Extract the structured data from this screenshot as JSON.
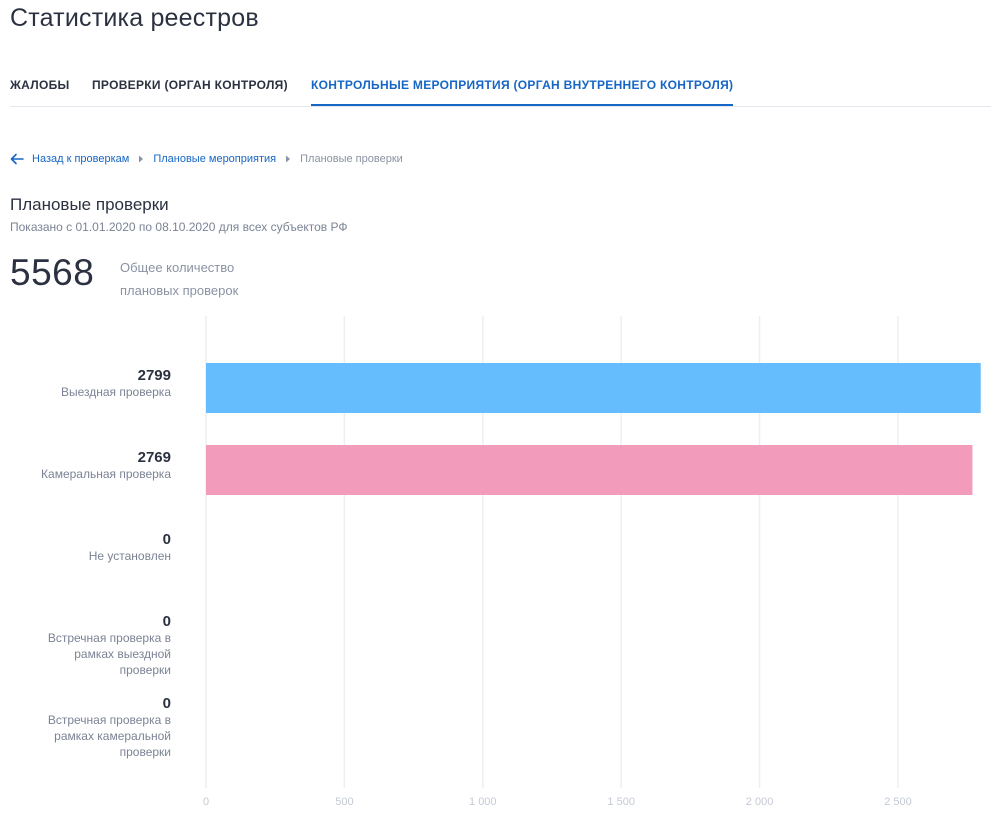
{
  "page": {
    "title": "Статистика реестров"
  },
  "tabs": [
    {
      "label": "ЖАЛОБЫ",
      "active": false
    },
    {
      "label": "ПРОВЕРКИ (ОРГАН КОНТРОЛЯ)",
      "active": false
    },
    {
      "label": "КОНТРОЛЬНЫЕ МЕРОПРИЯТИЯ (ОРГАН ВНУТРЕННЕГО КОНТРОЛЯ)",
      "active": true
    }
  ],
  "breadcrumb": {
    "back_icon": "arrow-left-icon",
    "back": "Назад к проверкам",
    "separator_icon": "caret-right-icon",
    "parent": "Плановые мероприятия",
    "current": "Плановые проверки"
  },
  "section": {
    "title": "Плановые проверки",
    "subtitle": "Показано с 01.01.2020 по 08.10.2020 для всех субъектов РФ"
  },
  "total": {
    "value": "5568",
    "label": "Общее количество плановых проверок"
  },
  "colors": {
    "accent": "#1666c5",
    "bar_blue": "#66bdfd",
    "bar_pink": "#f29bba",
    "grid": "#eceff3"
  },
  "chart_data": {
    "type": "bar",
    "orientation": "horizontal",
    "categories": [
      "Выездная проверка",
      "Камеральная проверка",
      "Не установлен",
      "Встречная проверка в рамках выездной проверки",
      "Встречная проверка в рамках камеральной проверки"
    ],
    "category_label_lines": [
      [
        "Выездная проверка"
      ],
      [
        "Камеральная проверка"
      ],
      [
        "Не установлен"
      ],
      [
        "Встречная проверка в",
        "рамках выездной",
        "проверки"
      ],
      [
        "Встречная проверка в",
        "рамках камеральной",
        "проверки"
      ]
    ],
    "values": [
      2799,
      2769,
      0,
      0,
      0
    ],
    "value_labels": [
      "2799",
      "2769",
      "0",
      "0",
      "0"
    ],
    "bar_colors": [
      "#66bdfd",
      "#f29bba",
      "#66bdfd",
      "#66bdfd",
      "#66bdfd"
    ],
    "xlim": [
      0,
      2800
    ],
    "ticks": [
      0,
      500,
      1000,
      1500,
      2000,
      2500
    ],
    "tick_labels": [
      "0",
      "500",
      "1 000",
      "1 500",
      "2 000",
      "2 500"
    ],
    "grid": true,
    "title": "",
    "xlabel": "",
    "ylabel": ""
  }
}
